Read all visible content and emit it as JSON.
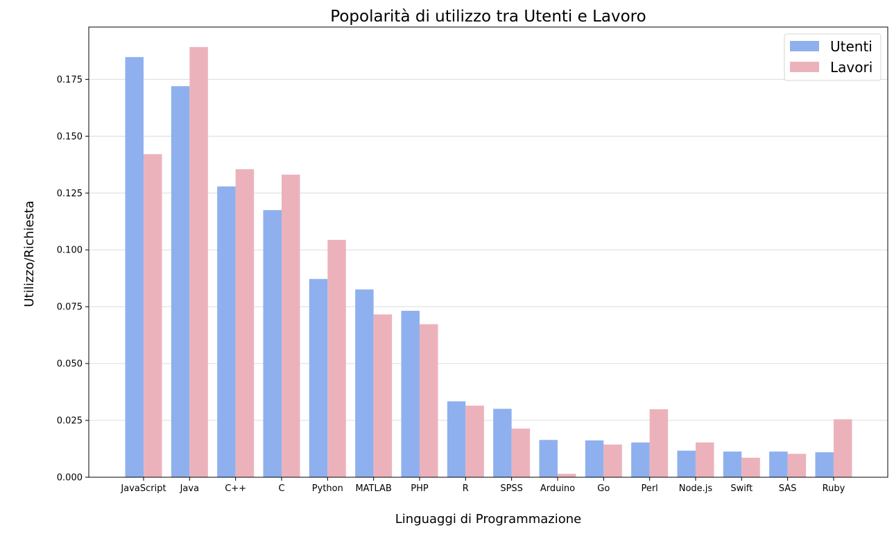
{
  "chart_data": {
    "type": "bar",
    "title": "Popolarità di utilizzo tra Utenti e Lavoro",
    "xlabel": "Linguaggi di Programmazione",
    "ylabel": "Utilizzo/Richiesta",
    "categories": [
      "JavaScript",
      "Java",
      "C++",
      "C",
      "Python",
      "MATLAB",
      "PHP",
      "R",
      "SPSS",
      "Arduino",
      "Go",
      "Perl",
      "Node.js",
      "Swift",
      "SAS",
      "Ruby"
    ],
    "series": [
      {
        "name": "Utenti",
        "color": "#8fb0ee",
        "values": [
          0.1848,
          0.172,
          0.1279,
          0.1175,
          0.0872,
          0.0826,
          0.0732,
          0.0334,
          0.0301,
          0.0164,
          0.0162,
          0.0153,
          0.0117,
          0.0113,
          0.0113,
          0.011
        ]
      },
      {
        "name": "Lavori",
        "color": "#ecb2bb",
        "values": [
          0.1421,
          0.1892,
          0.1355,
          0.1331,
          0.1044,
          0.0716,
          0.0673,
          0.0315,
          0.0214,
          0.0015,
          0.0144,
          0.0299,
          0.0153,
          0.0086,
          0.0103,
          0.0255
        ]
      }
    ],
    "ylim": [
      0,
      0.198
    ],
    "yticks": [
      "0.000",
      "0.025",
      "0.050",
      "0.075",
      "0.100",
      "0.125",
      "0.150",
      "0.175"
    ],
    "ytick_values": [
      0,
      0.025,
      0.05,
      0.075,
      0.1,
      0.125,
      0.15,
      0.175
    ],
    "grid": "horizontal",
    "legend_position": "top-right"
  }
}
